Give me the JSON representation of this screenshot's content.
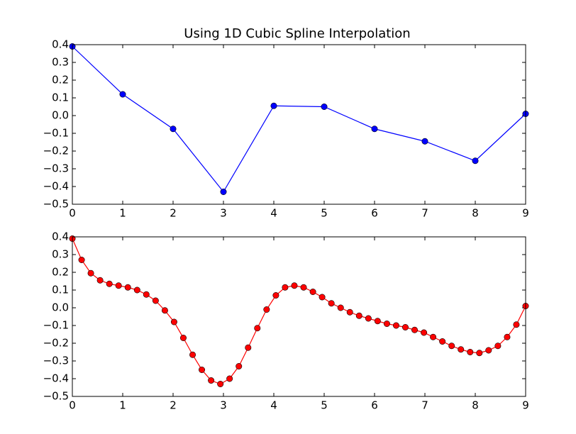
{
  "chart_data": [
    {
      "type": "line",
      "title": "Using 1D Cubic Spline Interpolation",
      "color": "#0000ff",
      "marker_color": "#0000ff",
      "x": [
        0,
        1,
        2,
        3,
        4,
        5,
        6,
        7,
        8,
        9
      ],
      "values": [
        0.39,
        0.12,
        -0.075,
        -0.43,
        0.055,
        0.05,
        -0.075,
        -0.145,
        -0.255,
        0.01
      ],
      "xlim": [
        0,
        9
      ],
      "xticks": [
        0,
        1,
        2,
        3,
        4,
        5,
        6,
        7,
        8,
        9
      ],
      "ylim": [
        -0.5,
        0.4
      ],
      "yticks": [
        {
          "value": -0.5,
          "label": "−0.5"
        },
        {
          "value": -0.4,
          "label": "−0.4"
        },
        {
          "value": -0.3,
          "label": "−0.3"
        },
        {
          "value": -0.2,
          "label": "−0.2"
        },
        {
          "value": -0.1,
          "label": "−0.1"
        },
        {
          "value": 0,
          "label": "0.0"
        },
        0.1,
        0.2,
        0.3,
        0.4
      ]
    },
    {
      "type": "line",
      "color": "#ff0000",
      "marker_color": "#ff0000",
      "x": [
        0,
        0.184,
        0.367,
        0.551,
        0.735,
        0.918,
        1.102,
        1.286,
        1.469,
        1.653,
        1.837,
        2.02,
        2.204,
        2.388,
        2.571,
        2.755,
        2.939,
        3.122,
        3.306,
        3.49,
        3.673,
        3.857,
        4.041,
        4.224,
        4.408,
        4.592,
        4.776,
        4.959,
        5.143,
        5.327,
        5.51,
        5.694,
        5.878,
        6.061,
        6.245,
        6.429,
        6.612,
        6.796,
        6.98,
        7.163,
        7.347,
        7.531,
        7.714,
        7.898,
        8.082,
        8.265,
        8.449,
        8.633,
        8.816,
        9
      ],
      "values": [
        0.39,
        0.27,
        0.195,
        0.155,
        0.135,
        0.125,
        0.115,
        0.1,
        0.075,
        0.04,
        -0.015,
        -0.08,
        -0.17,
        -0.265,
        -0.35,
        -0.41,
        -0.43,
        -0.4,
        -0.33,
        -0.225,
        -0.115,
        -0.01,
        0.07,
        0.115,
        0.125,
        0.115,
        0.09,
        0.06,
        0.025,
        0,
        -0.025,
        -0.045,
        -0.06,
        -0.075,
        -0.09,
        -0.1,
        -0.11,
        -0.125,
        -0.14,
        -0.165,
        -0.19,
        -0.215,
        -0.235,
        -0.25,
        -0.255,
        -0.24,
        -0.215,
        -0.165,
        -0.095,
        0.01
      ],
      "xlim": [
        0,
        9
      ],
      "xticks": [
        0,
        1,
        2,
        3,
        4,
        5,
        6,
        7,
        8,
        9
      ],
      "ylim": [
        -0.5,
        0.4
      ],
      "yticks": [
        {
          "value": -0.5,
          "label": "−0.5"
        },
        {
          "value": -0.4,
          "label": "−0.4"
        },
        {
          "value": -0.3,
          "label": "−0.3"
        },
        {
          "value": -0.2,
          "label": "−0.2"
        },
        {
          "value": -0.1,
          "label": "−0.1"
        },
        {
          "value": 0,
          "label": "0.0"
        },
        0.1,
        0.2,
        0.3,
        0.4
      ]
    }
  ]
}
